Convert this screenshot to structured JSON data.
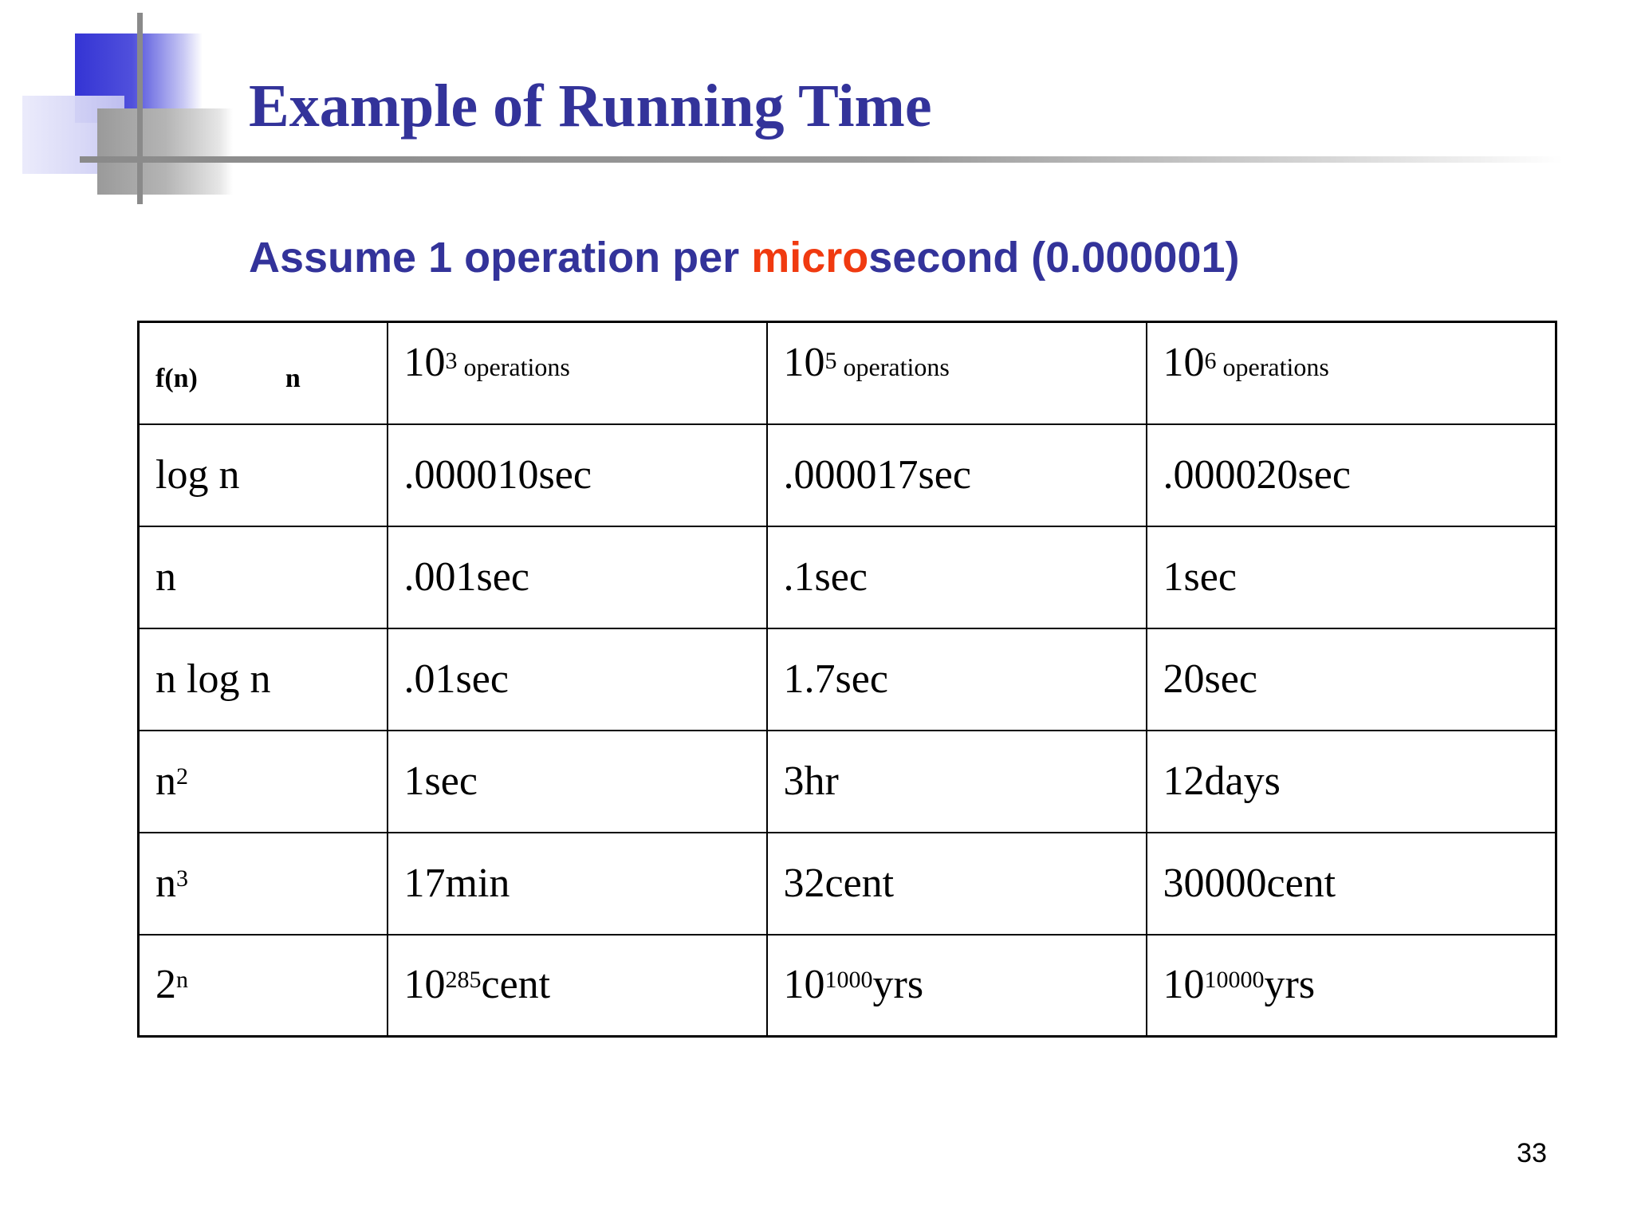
{
  "slide": {
    "title": "Example of Running Time",
    "subtitle": {
      "before": "Assume 1 operation per ",
      "accent": "micro",
      "after": "second (0.000001)"
    },
    "page_number": "33",
    "colors": {
      "title": "#33339a",
      "accent": "#f03a10"
    }
  },
  "table": {
    "header": {
      "fn_label": "f(n)",
      "n_label": "n",
      "columns": [
        {
          "base": "10",
          "exp": "3",
          "unit": " operations"
        },
        {
          "base": "10",
          "exp": "5",
          "unit": " operations"
        },
        {
          "base": "10",
          "exp": "6",
          "unit": " operations"
        }
      ]
    },
    "rows": [
      {
        "fn": {
          "base": "log n",
          "exp": ""
        },
        "cells": [
          {
            "base": ".000010sec",
            "exp": "",
            "suffix": ""
          },
          {
            "base": ".000017sec",
            "exp": "",
            "suffix": ""
          },
          {
            "base": ".000020sec",
            "exp": "",
            "suffix": ""
          }
        ]
      },
      {
        "fn": {
          "base": "n",
          "exp": ""
        },
        "cells": [
          {
            "base": ".001sec",
            "exp": "",
            "suffix": ""
          },
          {
            "base": ".1sec",
            "exp": "",
            "suffix": ""
          },
          {
            "base": "1sec",
            "exp": "",
            "suffix": ""
          }
        ]
      },
      {
        "fn": {
          "base": "n log n",
          "exp": ""
        },
        "cells": [
          {
            "base": ".01sec",
            "exp": "",
            "suffix": ""
          },
          {
            "base": "1.7sec",
            "exp": "",
            "suffix": ""
          },
          {
            "base": "20sec",
            "exp": "",
            "suffix": ""
          }
        ]
      },
      {
        "fn": {
          "base": "n",
          "exp": "2"
        },
        "cells": [
          {
            "base": "1sec",
            "exp": "",
            "suffix": ""
          },
          {
            "base": "3hr",
            "exp": "",
            "suffix": ""
          },
          {
            "base": "12days",
            "exp": "",
            "suffix": ""
          }
        ]
      },
      {
        "fn": {
          "base": "n",
          "exp": "3"
        },
        "cells": [
          {
            "base": "17min",
            "exp": "",
            "suffix": ""
          },
          {
            "base": "32cent",
            "exp": "",
            "suffix": ""
          },
          {
            "base": "30000cent",
            "exp": "",
            "suffix": ""
          }
        ]
      },
      {
        "fn": {
          "base": "2",
          "exp": "n"
        },
        "cells": [
          {
            "base": "10",
            "exp": "285",
            "suffix": "cent"
          },
          {
            "base": "10",
            "exp": "1000",
            "suffix": "yrs"
          },
          {
            "base": "10",
            "exp": "10000",
            "suffix": "yrs"
          }
        ]
      }
    ]
  }
}
